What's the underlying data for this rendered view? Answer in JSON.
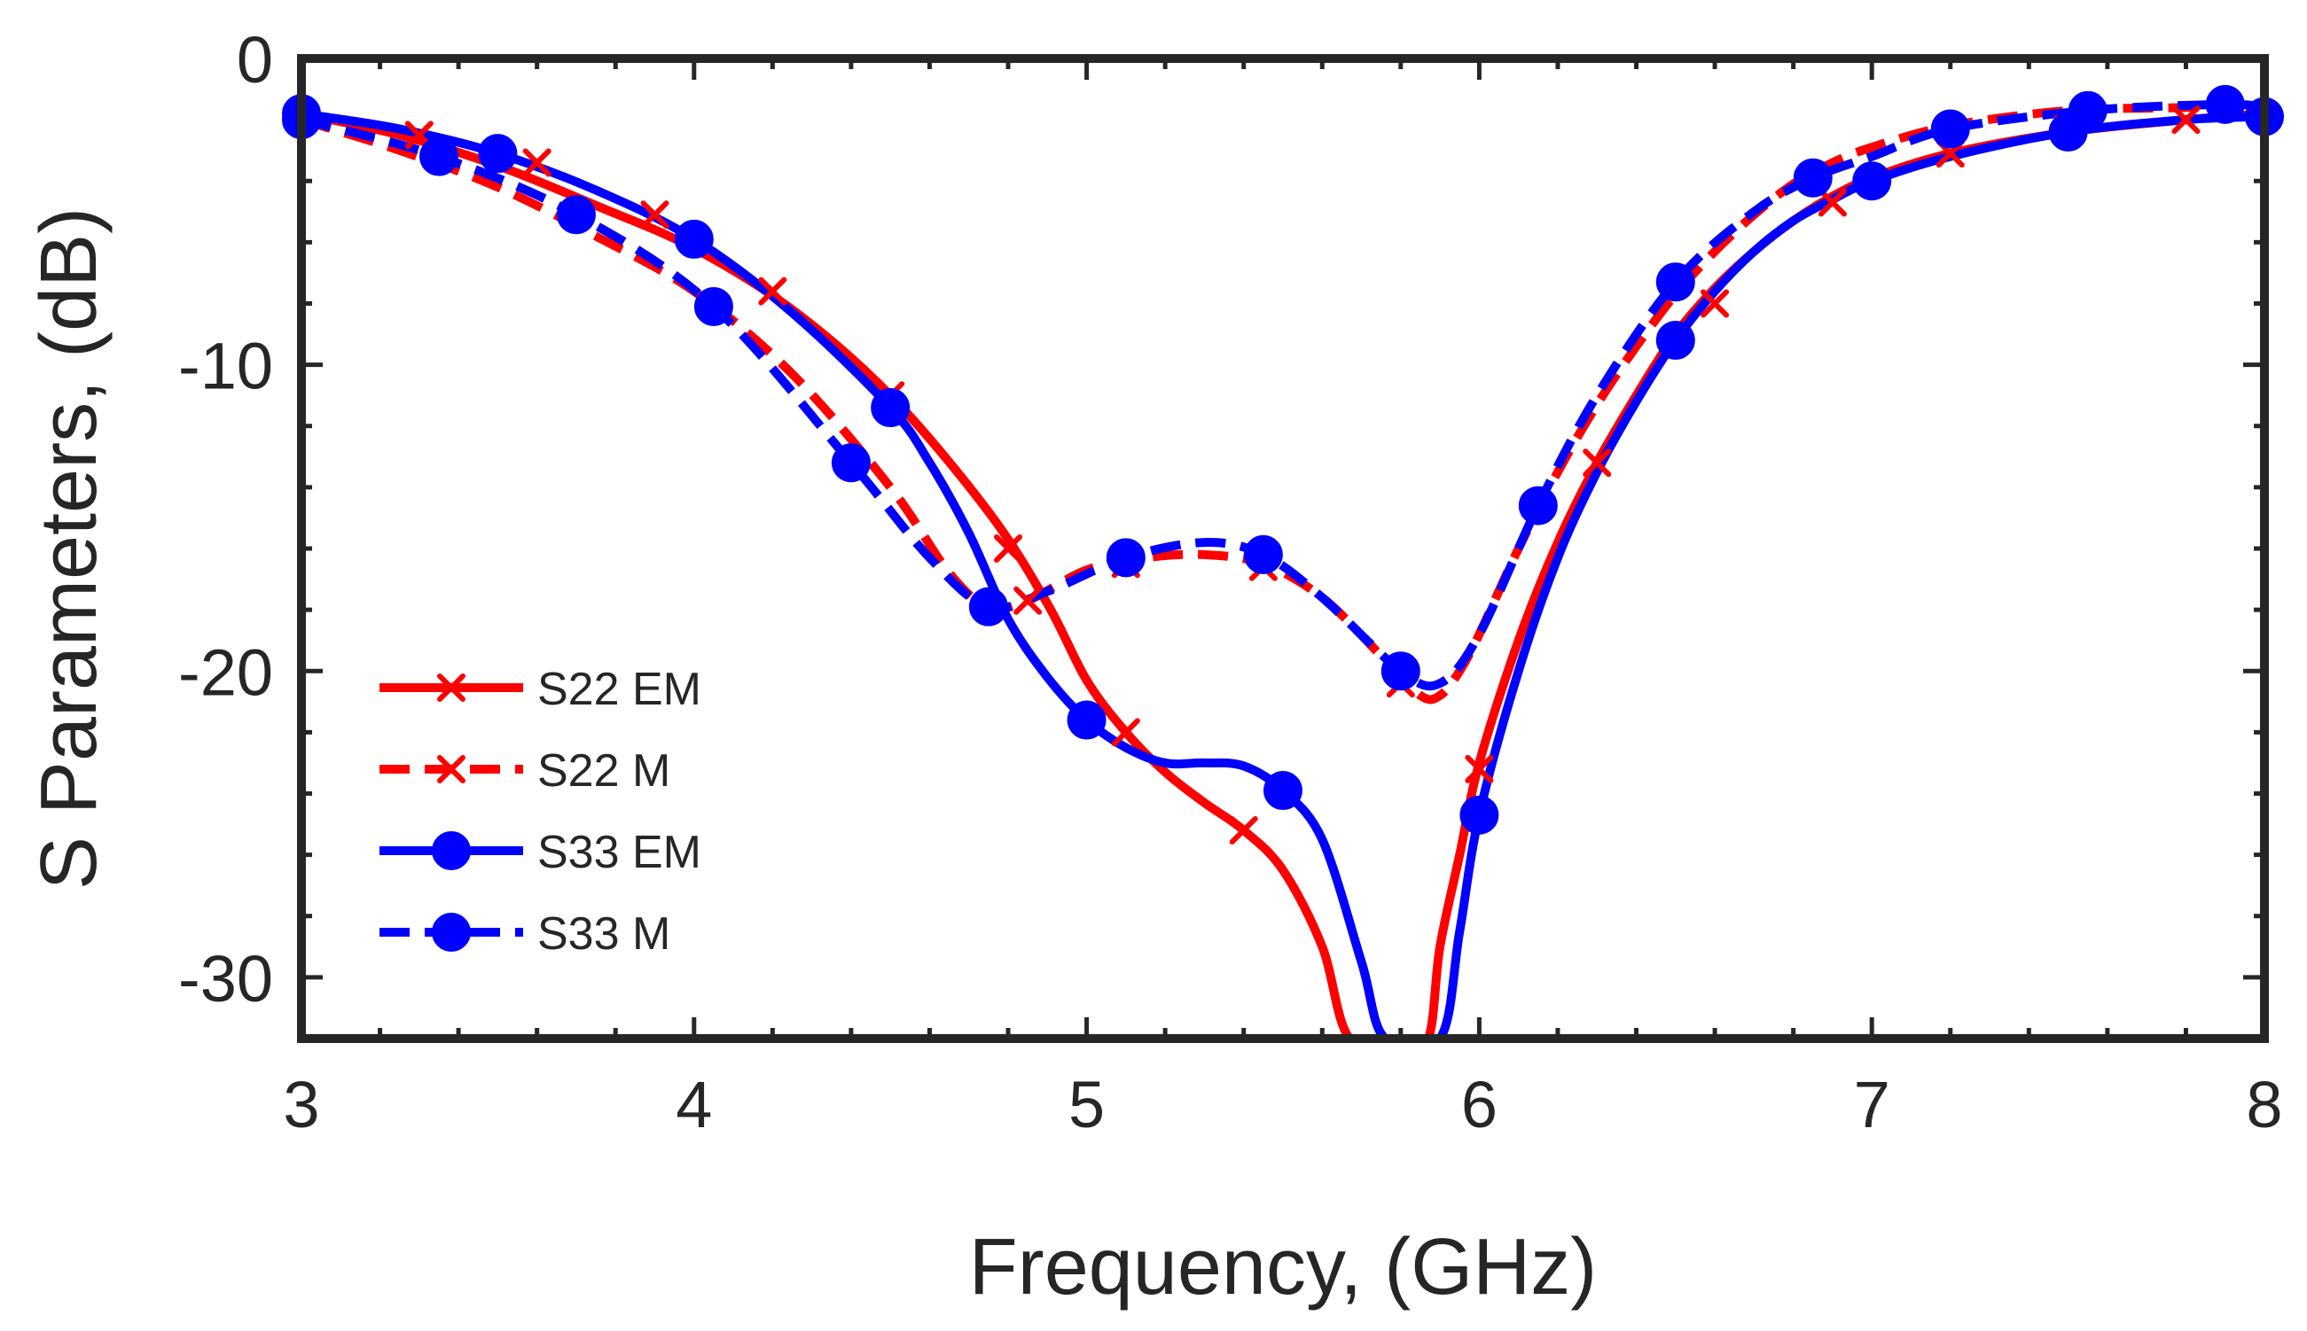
{
  "chart_data": {
    "type": "line",
    "title": "",
    "xlabel": "Frequency, (GHz)",
    "ylabel": "S Parameters, (dB)",
    "xlim": [
      3,
      8
    ],
    "ylim": [
      -32,
      0
    ],
    "xticks": [
      3,
      4,
      5,
      6,
      7,
      8
    ],
    "xtick_labels": [
      "3",
      "4",
      "5",
      "6",
      "7",
      "8"
    ],
    "yticks": [
      0,
      -10,
      -20,
      -30
    ],
    "ytick_labels": [
      "0",
      "-10",
      "-20",
      "-30"
    ],
    "grid": false,
    "legend_position": "lower-left",
    "series": [
      {
        "name": "S22 EM",
        "color": "#ff0000",
        "line_style": "solid",
        "marker": "x",
        "x": [
          3.0,
          3.25,
          3.5,
          3.75,
          4.0,
          4.25,
          4.5,
          4.75,
          4.9,
          5.0,
          5.1,
          5.2,
          5.3,
          5.4,
          5.5,
          5.6,
          5.67,
          5.8,
          5.87,
          5.9,
          5.95,
          6.0,
          6.1,
          6.2,
          6.3,
          6.4,
          6.5,
          6.6,
          6.7,
          6.8,
          6.9,
          7.0,
          7.2,
          7.5,
          7.8,
          8.0
        ],
        "y": [
          -1.8,
          -2.5,
          -3.5,
          -4.8,
          -6.2,
          -8.2,
          -11.0,
          -14.8,
          -17.8,
          -20.3,
          -22.0,
          -23.3,
          -24.3,
          -25.2,
          -26.5,
          -29.0,
          -32.0,
          -32.0,
          -32.0,
          -29.0,
          -26.0,
          -23.0,
          -19.0,
          -15.8,
          -13.2,
          -11.0,
          -9.0,
          -7.5,
          -6.3,
          -5.3,
          -4.5,
          -3.9,
          -3.1,
          -2.4,
          -2.0,
          -1.8
        ],
        "marker_x": [
          3.0,
          3.3,
          3.6,
          3.9,
          4.2,
          4.5,
          4.8,
          5.1,
          5.4,
          6.0,
          6.3,
          6.6,
          6.9,
          7.2,
          7.5,
          7.8
        ],
        "marker_y": [
          -1.8,
          -2.5,
          -3.4,
          -5.1,
          -7.6,
          -11.0,
          -16.0,
          -22.0,
          -25.2,
          -23.2,
          -13.2,
          -8.0,
          -4.7,
          -3.1,
          -2.3,
          -2.0
        ]
      },
      {
        "name": "S22 M",
        "color": "#ff0000",
        "line_style": "dashed",
        "marker": "x",
        "x": [
          3.0,
          3.25,
          3.5,
          3.75,
          4.0,
          4.25,
          4.5,
          4.65,
          4.75,
          4.85,
          5.0,
          5.15,
          5.3,
          5.45,
          5.6,
          5.75,
          5.85,
          5.9,
          5.95,
          6.0,
          6.1,
          6.2,
          6.3,
          6.4,
          6.5,
          6.6,
          6.7,
          6.8,
          6.9,
          7.0,
          7.2,
          7.5,
          7.8,
          8.0
        ],
        "y": [
          -2.0,
          -3.0,
          -4.2,
          -5.8,
          -7.6,
          -10.3,
          -14.0,
          -16.8,
          -17.9,
          -17.7,
          -16.7,
          -16.3,
          -16.2,
          -16.5,
          -17.6,
          -19.5,
          -20.8,
          -20.8,
          -20.0,
          -18.8,
          -16.0,
          -13.5,
          -11.3,
          -9.4,
          -7.7,
          -6.3,
          -5.1,
          -4.1,
          -3.4,
          -2.9,
          -2.2,
          -1.7,
          -1.6,
          -1.5
        ],
        "marker_x": [
          4.85,
          5.1,
          5.45,
          5.8
        ],
        "marker_y": [
          -17.7,
          -16.5,
          -16.6,
          -20.4
        ]
      },
      {
        "name": "S33 EM",
        "color": "#0000ff",
        "line_style": "solid",
        "marker": "circle",
        "x": [
          3.0,
          3.25,
          3.5,
          3.75,
          4.0,
          4.25,
          4.5,
          4.6,
          4.7,
          4.8,
          4.9,
          5.0,
          5.1,
          5.2,
          5.3,
          5.4,
          5.5,
          5.6,
          5.7,
          5.76,
          5.9,
          5.95,
          6.0,
          6.1,
          6.2,
          6.3,
          6.4,
          6.5,
          6.6,
          6.7,
          6.8,
          6.9,
          7.0,
          7.2,
          7.5,
          7.8,
          8.0
        ],
        "y": [
          -1.8,
          -2.3,
          -3.1,
          -4.3,
          -5.9,
          -8.3,
          -11.4,
          -13.2,
          -15.5,
          -18.3,
          -20.2,
          -21.6,
          -22.5,
          -23.0,
          -23.0,
          -23.1,
          -23.9,
          -25.5,
          -29.5,
          -32.0,
          -32.0,
          -28.5,
          -24.7,
          -20.0,
          -16.3,
          -13.5,
          -11.2,
          -9.2,
          -7.6,
          -6.3,
          -5.3,
          -4.6,
          -4.0,
          -3.2,
          -2.4,
          -2.0,
          -1.9
        ],
        "marker_x": [
          3.0,
          3.5,
          4.0,
          4.5,
          5.0,
          5.5,
          6.0,
          6.5,
          7.0,
          7.5,
          8.0
        ],
        "marker_y": [
          -1.8,
          -3.1,
          -5.9,
          -11.4,
          -21.6,
          -23.9,
          -24.7,
          -9.2,
          -4.0,
          -2.4,
          -1.9
        ]
      },
      {
        "name": "S33 M",
        "color": "#0000ff",
        "line_style": "dashed",
        "marker": "circle",
        "x": [
          3.0,
          3.35,
          3.7,
          4.05,
          4.4,
          4.6,
          4.75,
          4.9,
          5.1,
          5.3,
          5.45,
          5.6,
          5.8,
          5.9,
          6.0,
          6.15,
          6.3,
          6.5,
          6.7,
          6.85,
          7.0,
          7.2,
          7.55,
          7.9,
          8.0
        ],
        "y": [
          -2.0,
          -3.2,
          -5.1,
          -8.1,
          -13.2,
          -16.3,
          -17.9,
          -17.4,
          -16.3,
          -15.8,
          -16.2,
          -17.6,
          -20.0,
          -20.4,
          -18.8,
          -14.6,
          -11.0,
          -7.3,
          -5.0,
          -3.9,
          -3.2,
          -2.3,
          -1.7,
          -1.5,
          -1.6
        ],
        "marker_x": [
          3.0,
          3.35,
          3.7,
          4.05,
          4.4,
          4.75,
          5.1,
          5.45,
          5.8,
          6.15,
          6.5,
          6.85,
          7.2,
          7.55,
          7.9
        ],
        "marker_y": [
          -2.0,
          -3.2,
          -5.1,
          -8.1,
          -13.2,
          -17.9,
          -16.3,
          -16.2,
          -20.0,
          -14.6,
          -7.3,
          -3.9,
          -2.3,
          -1.7,
          -1.5
        ]
      }
    ]
  }
}
